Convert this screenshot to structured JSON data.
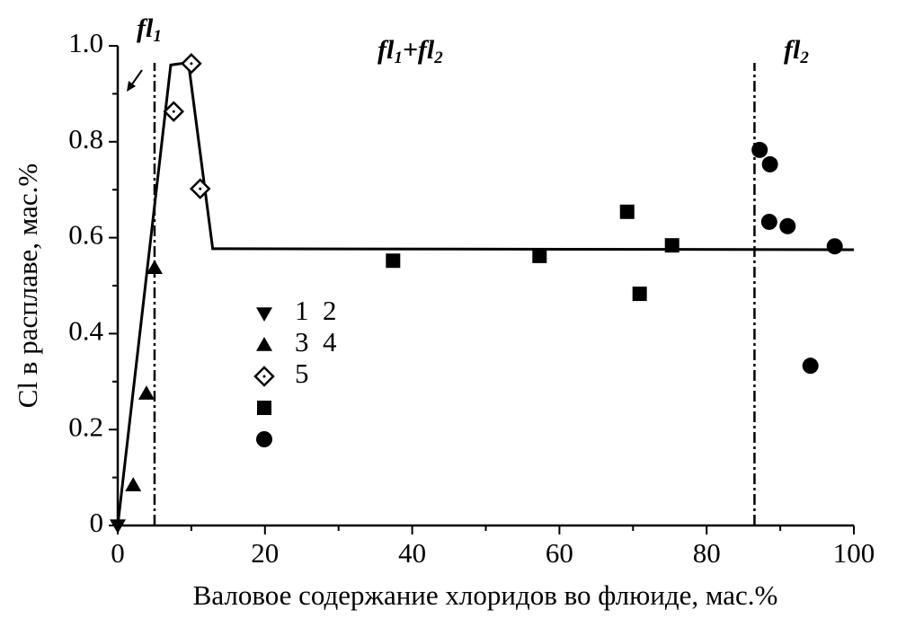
{
  "chart_data": {
    "type": "scatter",
    "x_label": "Валовое содержание хлоридов во флюиде, мас.%",
    "y_label": "Cl в расплаве, мас.%",
    "xlim": [
      0,
      100
    ],
    "ylim": [
      0,
      1
    ],
    "xticks": [
      0,
      20,
      40,
      60,
      80,
      100
    ],
    "yticks": [
      0,
      0.2,
      0.4,
      0.6,
      0.8,
      {
        "value": 1,
        "label": "1.0"
      }
    ],
    "series": [
      {
        "name": "1  2",
        "marker": "triangle-down",
        "color": "#000000",
        "x": [
          0
        ],
        "values": [
          0
        ]
      },
      {
        "name": "3  4",
        "marker": "triangle-up",
        "color": "#000000",
        "x": [
          2.1,
          3.9,
          5.0
        ],
        "values": [
          0.084,
          0.275,
          0.537
        ]
      },
      {
        "name": "5",
        "marker": "diamond",
        "color": "#000000",
        "x": [
          7.6,
          10.0,
          11.2
        ],
        "values": [
          0.863,
          0.963,
          0.702
        ]
      },
      {
        "marker": "square",
        "color": "#000000",
        "x": [
          37.4,
          57.3,
          69.2,
          70.9,
          75.3
        ],
        "values": [
          0.552,
          0.562,
          0.654,
          0.483,
          0.584
        ]
      },
      {
        "marker": "circle",
        "color": "#000000",
        "x": [
          87.2,
          88.6,
          88.5,
          91.0,
          94.1,
          97.4
        ],
        "values": [
          0.783,
          0.753,
          0.633,
          0.624,
          0.333,
          0.582
        ]
      }
    ],
    "fit_line": {
      "x": [
        0,
        7.2,
        9.6,
        12.9,
        100
      ],
      "y": [
        0,
        0.96,
        0.965,
        0.577,
        0.575
      ]
    },
    "reference_lines": [
      5,
      86.5
    ],
    "annotations": [
      {
        "parts": [
          "fl",
          "1"
        ]
      },
      {
        "parts": [
          "fl",
          "1",
          "+fl",
          "2"
        ]
      },
      {
        "parts": [
          "fl",
          "2"
        ]
      }
    ]
  }
}
